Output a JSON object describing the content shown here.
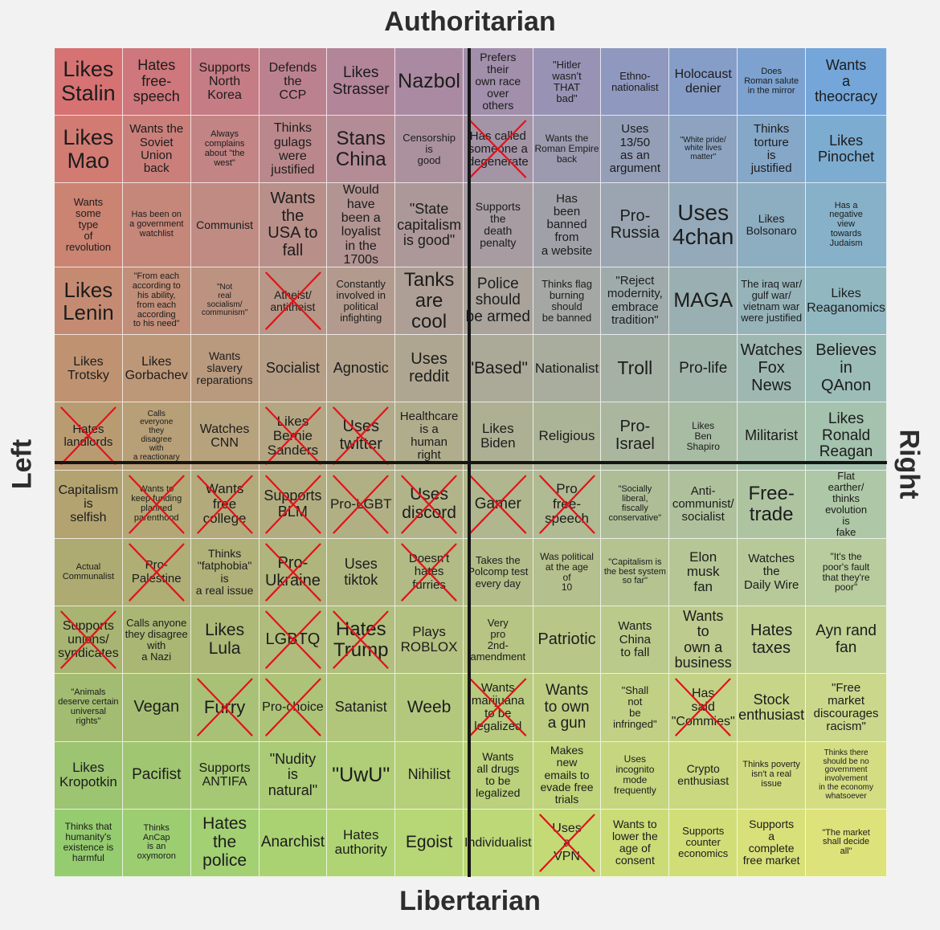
{
  "axes": {
    "top": "Authoritarian",
    "bottom": "Libertarian",
    "left": "Left",
    "right": "Right"
  },
  "colors": {
    "auth_left": "#df6c6e",
    "auth_right": "#6aa6e3",
    "lib_left": "#8fcf70",
    "lib_right": "#e7e676",
    "cross_mark": "#e3121a"
  },
  "cells": [
    {
      "text": "Likes\nStalin",
      "size": 27,
      "crossed": false
    },
    {
      "text": "Hates\nfree-speech",
      "size": 18,
      "crossed": false
    },
    {
      "text": "Supports\nNorth\nKorea",
      "size": 16,
      "crossed": false
    },
    {
      "text": "Defends\nthe\nCCP",
      "size": 16,
      "crossed": false
    },
    {
      "text": "Likes\nStrasser",
      "size": 19,
      "crossed": false
    },
    {
      "text": "Nazbol",
      "size": 25,
      "crossed": false
    },
    {
      "text": "Prefers\ntheir\nown race\nover\nothers",
      "size": 14,
      "crossed": false
    },
    {
      "text": "\"Hitler\nwasn't\nTHAT\nbad\"",
      "size": 13,
      "crossed": false
    },
    {
      "text": "Ethno-\nnationalist",
      "size": 13,
      "crossed": false
    },
    {
      "text": "Holocaust\ndenier",
      "size": 16,
      "crossed": false
    },
    {
      "text": "Does\nRoman salute\nin the mirror",
      "size": 11,
      "crossed": false
    },
    {
      "text": "Wants\na\ntheocracy",
      "size": 18,
      "crossed": false
    },
    {
      "text": "Likes\nMao",
      "size": 27,
      "crossed": false
    },
    {
      "text": "Wants the\nSoviet Union\nback",
      "size": 15,
      "crossed": false
    },
    {
      "text": "Always\ncomplains\nabout \"the\nwest\"",
      "size": 11,
      "crossed": false
    },
    {
      "text": "Thinks\ngulags\nwere\njustified",
      "size": 16,
      "crossed": false
    },
    {
      "text": "Stans\nChina",
      "size": 24,
      "crossed": false
    },
    {
      "text": "Censorship\nis\ngood",
      "size": 13,
      "crossed": false
    },
    {
      "text": "Has called\nsomeone a\ndegenerate",
      "size": 15,
      "crossed": true
    },
    {
      "text": "Wants the\nRoman Empire\nback",
      "size": 12,
      "crossed": false
    },
    {
      "text": "Uses\n13/50\nas an\nargument",
      "size": 15,
      "crossed": false
    },
    {
      "text": "\"White pride/\nwhite lives\nmatter\"",
      "size": 10,
      "crossed": false
    },
    {
      "text": "Thinks\ntorture\nis\njustified",
      "size": 15,
      "crossed": false
    },
    {
      "text": "Likes\nPinochet",
      "size": 18,
      "crossed": false
    },
    {
      "text": "Wants\nsome\ntype\nof\nrevolution",
      "size": 13,
      "crossed": false
    },
    {
      "text": "Has been on\na government\nwatchlist",
      "size": 11,
      "crossed": false
    },
    {
      "text": "Communist",
      "size": 14,
      "crossed": false
    },
    {
      "text": "Wants\nthe\nUSA to\nfall",
      "size": 20,
      "crossed": false
    },
    {
      "text": "Would have\nbeen a\nloyalist\nin the 1700s",
      "size": 16,
      "crossed": false
    },
    {
      "text": "\"State\ncapitalism\nis good\"",
      "size": 18,
      "crossed": false
    },
    {
      "text": "Supports\nthe\ndeath\npenalty",
      "size": 14,
      "crossed": false
    },
    {
      "text": "Has\nbeen\nbanned\nfrom\na website",
      "size": 15,
      "crossed": false
    },
    {
      "text": "Pro-\nRussia",
      "size": 20,
      "crossed": false
    },
    {
      "text": "Uses\n4chan",
      "size": 28,
      "crossed": false
    },
    {
      "text": "Likes\nBolsonaro",
      "size": 14,
      "crossed": false
    },
    {
      "text": "Has a\nnegative\nview\ntowards\nJudaism",
      "size": 11,
      "crossed": false
    },
    {
      "text": "Likes\nLenin",
      "size": 26,
      "crossed": false
    },
    {
      "text": "\"From each\naccording to\nhis ability,\nfrom each\naccording\nto his need\"",
      "size": 11,
      "crossed": false
    },
    {
      "text": "\"Not\nreal\nsocialism/\ncommunism\"",
      "size": 10,
      "crossed": false
    },
    {
      "text": "Atheist/\nantitheist",
      "size": 14,
      "crossed": true
    },
    {
      "text": "Constantly\ninvolved in\npolitical\ninfighting",
      "size": 13,
      "crossed": false
    },
    {
      "text": "Tanks\nare\ncool",
      "size": 24,
      "crossed": false
    },
    {
      "text": "Police\nshould\nbe armed",
      "size": 19,
      "crossed": false
    },
    {
      "text": "Thinks flag\nburning\nshould\nbe banned",
      "size": 13,
      "crossed": false
    },
    {
      "text": "\"Reject\nmodernity,\nembrace\ntradition\"",
      "size": 15,
      "crossed": false
    },
    {
      "text": "MAGA",
      "size": 25,
      "crossed": false
    },
    {
      "text": "The iraq war/\ngulf war/\nvietnam war\nwere justified",
      "size": 13,
      "crossed": false
    },
    {
      "text": "Likes\nReaganomics",
      "size": 16,
      "crossed": false
    },
    {
      "text": "Likes\nTrotsky",
      "size": 16,
      "crossed": false
    },
    {
      "text": "Likes\nGorbachev",
      "size": 16,
      "crossed": false
    },
    {
      "text": "Wants\nslavery\nreparations",
      "size": 14,
      "crossed": false
    },
    {
      "text": "Socialist",
      "size": 18,
      "crossed": false
    },
    {
      "text": "Agnostic",
      "size": 18,
      "crossed": false
    },
    {
      "text": "Uses\nreddit",
      "size": 20,
      "crossed": false
    },
    {
      "text": "\"Based\"",
      "size": 21,
      "crossed": false
    },
    {
      "text": "Nationalist",
      "size": 17,
      "crossed": false
    },
    {
      "text": "Troll",
      "size": 23,
      "crossed": false
    },
    {
      "text": "Pro-life",
      "size": 19,
      "crossed": false
    },
    {
      "text": "Watches\nFox\nNews",
      "size": 20,
      "crossed": false
    },
    {
      "text": "Believes\nin\nQAnon",
      "size": 20,
      "crossed": false
    },
    {
      "text": "Hates\nlandlords",
      "size": 15,
      "crossed": true
    },
    {
      "text": "Calls\neveryone\nthey\ndisagree\nwith\na reactionary",
      "size": 10,
      "crossed": false
    },
    {
      "text": "Watches\nCNN",
      "size": 16,
      "crossed": false
    },
    {
      "text": "Likes\nBernie\nSanders",
      "size": 17,
      "crossed": true
    },
    {
      "text": "Uses\ntwitter",
      "size": 20,
      "crossed": true
    },
    {
      "text": "Healthcare\nis a\nhuman\nright",
      "size": 15,
      "crossed": false
    },
    {
      "text": "Likes\nBiden",
      "size": 17,
      "crossed": false
    },
    {
      "text": "Religious",
      "size": 17,
      "crossed": false
    },
    {
      "text": "Pro-\nIsrael",
      "size": 20,
      "crossed": false
    },
    {
      "text": "Likes\nBen\nShapiro",
      "size": 12,
      "crossed": false
    },
    {
      "text": "Militarist",
      "size": 18,
      "crossed": false
    },
    {
      "text": "Likes\nRonald\nReagan",
      "size": 19,
      "crossed": false
    },
    {
      "text": "Capitalism\nis\nselfish",
      "size": 16,
      "crossed": false
    },
    {
      "text": "Wants to\nkeep funding\nplanned\nparenthood",
      "size": 11,
      "crossed": true
    },
    {
      "text": "Wants\nfree\ncollege",
      "size": 17,
      "crossed": true
    },
    {
      "text": "Supports\nBLM",
      "size": 18,
      "crossed": true
    },
    {
      "text": "Pro-LGBT",
      "size": 17,
      "crossed": true
    },
    {
      "text": "Uses\ndiscord",
      "size": 21,
      "crossed": true
    },
    {
      "text": "Gamer",
      "size": 19,
      "crossed": true
    },
    {
      "text": "Pro\nfree-\nspeech",
      "size": 17,
      "crossed": true
    },
    {
      "text": "\"Socially\nliberal,\nfiscally\nconservative\"",
      "size": 11,
      "crossed": false
    },
    {
      "text": "Anti-\ncommunist/\nsocialist",
      "size": 15,
      "crossed": false
    },
    {
      "text": "Free-\ntrade",
      "size": 24,
      "crossed": false
    },
    {
      "text": "Flat\nearther/\nthinks\nevolution\nis\nfake",
      "size": 13,
      "crossed": false
    },
    {
      "text": "Actual\nCommunalist",
      "size": 11,
      "crossed": false
    },
    {
      "text": "Pro-\nPalestine",
      "size": 15,
      "crossed": true
    },
    {
      "text": "Thinks\n\"fatphobia\"\nis\na real issue",
      "size": 14,
      "crossed": false
    },
    {
      "text": "Pro-\nUkraine",
      "size": 20,
      "crossed": true
    },
    {
      "text": "Uses\ntiktok",
      "size": 18,
      "crossed": false
    },
    {
      "text": "Doesn't\nhates\nfurries",
      "size": 15,
      "crossed": true
    },
    {
      "text": "Takes the\nPolcomp test\nevery day",
      "size": 13,
      "crossed": false
    },
    {
      "text": "Was political\nat the age\nof\n10",
      "size": 12,
      "crossed": false
    },
    {
      "text": "\"Capitalism is\nthe best system\nso far\"",
      "size": 11,
      "crossed": false
    },
    {
      "text": "Elon\nmusk\nfan",
      "size": 17,
      "crossed": false
    },
    {
      "text": "Watches\nthe\nDaily Wire",
      "size": 15,
      "crossed": false
    },
    {
      "text": "\"It's the\npoor's fault\nthat they're\npoor\"",
      "size": 12,
      "crossed": false
    },
    {
      "text": "Supports\nunions/\nsyndicates",
      "size": 16,
      "crossed": true
    },
    {
      "text": "Calls anyone\nthey disagree\nwith\na Nazi",
      "size": 13,
      "crossed": false
    },
    {
      "text": "Likes\nLula",
      "size": 21,
      "crossed": false
    },
    {
      "text": "LGBTQ",
      "size": 20,
      "crossed": true
    },
    {
      "text": "Hates\nTrump",
      "size": 24,
      "crossed": true
    },
    {
      "text": "Plays\nROBLOX",
      "size": 17,
      "crossed": false
    },
    {
      "text": "Very\npro\n2nd-\namendment",
      "size": 13,
      "crossed": false
    },
    {
      "text": "Patriotic",
      "size": 20,
      "crossed": false
    },
    {
      "text": "Wants\nChina\nto fall",
      "size": 15,
      "crossed": false
    },
    {
      "text": "Wants\nto\nown a\nbusiness",
      "size": 18,
      "crossed": false
    },
    {
      "text": "Hates\ntaxes",
      "size": 20,
      "crossed": false
    },
    {
      "text": "Ayn rand\nfan",
      "size": 19,
      "crossed": false
    },
    {
      "text": "\"Animals\ndeserve certain\nuniversal\nrights\"",
      "size": 11,
      "crossed": false
    },
    {
      "text": "Vegan",
      "size": 20,
      "crossed": false
    },
    {
      "text": "Furry",
      "size": 22,
      "crossed": true
    },
    {
      "text": "Pro-choice",
      "size": 16,
      "crossed": true
    },
    {
      "text": "Satanist",
      "size": 18,
      "crossed": false
    },
    {
      "text": "Weeb",
      "size": 21,
      "crossed": false
    },
    {
      "text": "Wants\nmarijuana\nto be\nlegalized",
      "size": 15,
      "crossed": true
    },
    {
      "text": "Wants\nto own\na gun",
      "size": 19,
      "crossed": false
    },
    {
      "text": "\"Shall\nnot\nbe\ninfringed\"",
      "size": 13,
      "crossed": false
    },
    {
      "text": "Has\nsaid\n\"Commies\"",
      "size": 16,
      "crossed": true
    },
    {
      "text": "Stock\nenthusiast",
      "size": 18,
      "crossed": false
    },
    {
      "text": "\"Free\nmarket\ndiscourages\nracism\"",
      "size": 15,
      "crossed": false
    },
    {
      "text": "Likes\nKropotkin",
      "size": 17,
      "crossed": false
    },
    {
      "text": "Pacifist",
      "size": 19,
      "crossed": false
    },
    {
      "text": "Supports\nANTIFA",
      "size": 16,
      "crossed": false
    },
    {
      "text": "\"Nudity\nis\nnatural\"",
      "size": 18,
      "crossed": false
    },
    {
      "text": "\"UwU\"",
      "size": 25,
      "crossed": false
    },
    {
      "text": "Nihilist",
      "size": 18,
      "crossed": false
    },
    {
      "text": "Wants\nall drugs\nto be\nlegalized",
      "size": 14,
      "crossed": false
    },
    {
      "text": "Makes\nnew\nemails to\nevade free\ntrials",
      "size": 14,
      "crossed": false
    },
    {
      "text": "Uses\nincognito\nmode\nfrequently",
      "size": 12,
      "crossed": false
    },
    {
      "text": "Crypto\nenthusiast",
      "size": 14,
      "crossed": false
    },
    {
      "text": "Thinks poverty\nisn't a real\nissue",
      "size": 11,
      "crossed": false
    },
    {
      "text": "Thinks there\nshould be no\ngovernment\ninvolvement\nin the economy\nwhatsoever",
      "size": 10,
      "crossed": false
    },
    {
      "text": "Thinks that\nhumanity's\nexistence is\nharmful",
      "size": 12,
      "crossed": false
    },
    {
      "text": "Thinks\nAnCap\nis an\noxymoron",
      "size": 11,
      "crossed": false
    },
    {
      "text": "Hates\nthe\npolice",
      "size": 21,
      "crossed": false
    },
    {
      "text": "Anarchist",
      "size": 19,
      "crossed": false
    },
    {
      "text": "Hates\nauthority",
      "size": 17,
      "crossed": false
    },
    {
      "text": "Egoist",
      "size": 21,
      "crossed": false
    },
    {
      "text": "Individualist",
      "size": 16,
      "crossed": false
    },
    {
      "text": "Uses\na\nVPN",
      "size": 16,
      "crossed": true
    },
    {
      "text": "Wants to\nlower the\nage of\nconsent",
      "size": 14,
      "crossed": false
    },
    {
      "text": "Supports\ncounter\neconomics",
      "size": 13,
      "crossed": false
    },
    {
      "text": "Supports\na\ncomplete\nfree market",
      "size": 14,
      "crossed": false
    },
    {
      "text": "\"The market\nshall decide\nall\"",
      "size": 11,
      "crossed": false
    }
  ]
}
